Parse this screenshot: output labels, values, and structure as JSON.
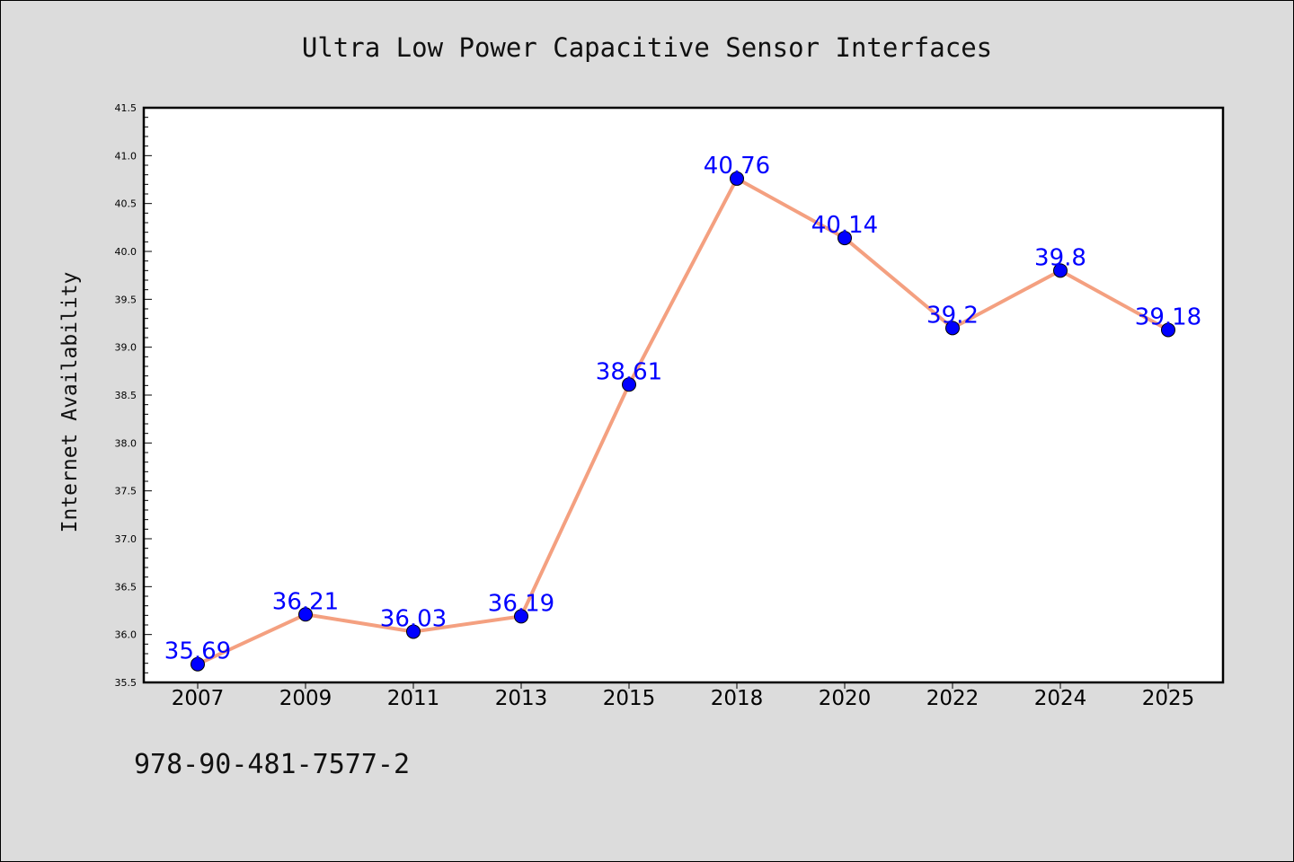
{
  "chart_data": {
    "type": "line",
    "title": "Ultra Low Power Capacitive Sensor Interfaces",
    "xlabel": "",
    "ylabel": "Internet Availability",
    "categories": [
      "2007",
      "2009",
      "2011",
      "2013",
      "2015",
      "2018",
      "2020",
      "2022",
      "2024",
      "2025"
    ],
    "series": [
      {
        "values": [
          35.69,
          36.21,
          36.03,
          36.19,
          38.61,
          40.76,
          40.14,
          39.2,
          39.8,
          39.18
        ],
        "labels": [
          "35.69",
          "36.21",
          "36.03",
          "36.19",
          "38.61",
          "40.76",
          "40.14",
          "39.2",
          "39.8",
          "39.18"
        ]
      }
    ],
    "ylim": [
      35.5,
      41.5
    ],
    "yticks": [
      "35.5",
      "36.0",
      "36.5",
      "37.0",
      "37.5",
      "38.0",
      "38.5",
      "39.0",
      "39.5",
      "40.0",
      "40.5",
      "41.0",
      "41.5"
    ],
    "grid": false,
    "line_color": "#f4a080",
    "marker_color": "#0000ff",
    "label_color": "#0000ff",
    "plot_background": "#ffffff",
    "figure_background": "#dcdcdc"
  },
  "footnote": "978-90-481-7577-2"
}
